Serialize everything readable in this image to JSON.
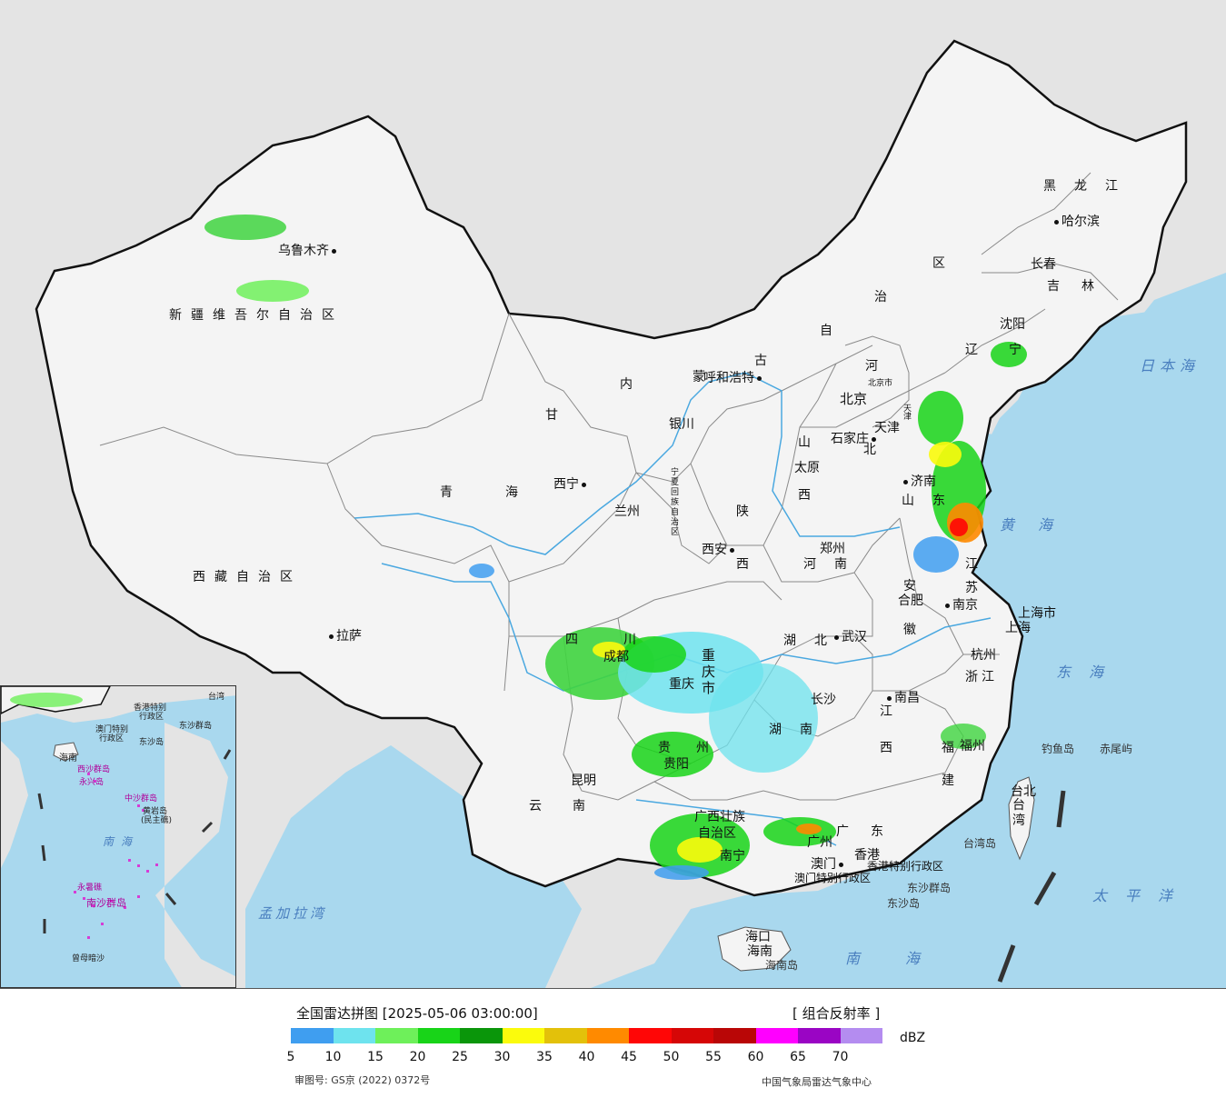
{
  "colors": {
    "sea": "#a9d8ee",
    "foreign_land": "#e4e4e4",
    "china_land": "#f4f4f4",
    "national_border": "#111111",
    "river": "#4aa8e0"
  },
  "map": {
    "provinces": {
      "xinjiang": "新疆维吾尔自治区",
      "xizang": "西藏自治区",
      "qinghai_1": "青",
      "qinghai_2": "海",
      "gansu": "甘",
      "neimenggu_1": "内",
      "neimenggu_2": "蒙",
      "neimenggu_3": "古",
      "neimenggu_4": "自",
      "neimenggu_5": "治",
      "neimenggu_6": "区",
      "ningxia": "宁夏回族自治区",
      "heilongjiang": "黑龙江",
      "jilin": "吉林",
      "liaoning_1": "辽",
      "liaoning_2": "宁",
      "hebei_1": "河",
      "hebei_2": "北",
      "shanxi_1": "山",
      "shanxi_2": "西",
      "shaanxi_1": "陕",
      "shaanxi_2": "西",
      "henan": "河南",
      "shandong": "山东",
      "jiangsu_1": "江",
      "jiangsu_2": "苏",
      "anhui_1": "安",
      "anhui_2": "徽",
      "hubei": "湖北",
      "hunan": "湖南",
      "sichuan": "四川",
      "chongqing": "重庆市",
      "guizhou": "贵州",
      "yunnan": "云南",
      "guangxi_1": "广西壮族",
      "guangxi_2": "自治区",
      "guangdong": "广东",
      "jiangxi_1": "江",
      "jiangxi_2": "西",
      "zhejiang": "浙江",
      "fujian_1": "福",
      "fujian_2": "建",
      "taiwan": "台湾",
      "hainan": "海南",
      "shanghai": "上海市",
      "beijing": "北京市",
      "tianjin": "天津",
      "hongkong": "香港特别行政区",
      "macau": "澳门特别行政区"
    },
    "cities": {
      "urumqi": "乌鲁木齐",
      "lhasa": "拉萨",
      "xining": "西宁",
      "lanzhou": "兰州",
      "yinchuan": "银川",
      "hohhot": "呼和浩特",
      "beijing": "北京",
      "tianjin": "天津",
      "shijiazhuang": "石家庄",
      "taiyuan": "太原",
      "jinan": "济南",
      "zhengzhou": "郑州",
      "xian": "西安",
      "hefei": "合肥",
      "nanjing": "南京",
      "shanghai": "上海",
      "hangzhou": "杭州",
      "wuhan": "武汉",
      "changsha": "长沙",
      "nanchang": "南昌",
      "fuzhou": "福州",
      "taibei": "台北",
      "chengdu": "成都",
      "chongqing": "重庆",
      "guiyang": "贵阳",
      "kunming": "昆明",
      "nanning": "南宁",
      "guangzhou": "广州",
      "hongkong": "香港",
      "macau": "澳门",
      "haikou": "海口",
      "harbin": "哈尔滨",
      "changchun": "长春",
      "shenyang": "沈阳"
    },
    "islands": {
      "diaoyu": "钓鱼岛",
      "chiwei": "赤尾屿",
      "dongsha_group": "东沙群岛",
      "dongsha": "东沙岛",
      "taiwan_island": "台湾岛",
      "hainan_island": "海南岛"
    },
    "seas": {
      "japan_sea": "日本海",
      "yellow_sea": "黄海",
      "east_sea": "东海",
      "pacific": "太平洋",
      "south_sea": "南海",
      "bengal": "孟加拉湾"
    }
  },
  "inset": {
    "labels": {
      "taiwan": "台湾",
      "hongkong": "香港特别",
      "hk2": "行政区",
      "macau": "澳门特别",
      "macau2": "行政区",
      "dongsha": "东沙群岛",
      "dongsha2": "东沙岛",
      "hainan": "海南",
      "xisha": "西沙群岛",
      "yongxing": "永兴岛",
      "zhongsha": "中沙群岛",
      "huangyan": "黄岩岛",
      "huangyan2": "(民主礁)",
      "yongshu": "永暑礁",
      "nansha": "南沙群岛",
      "zengmu": "曾母暗沙",
      "south_sea": "南海"
    }
  },
  "legend": {
    "title": "全国雷达拼图 [2025-05-06 03:00:00]",
    "product": "[ 组合反射率 ]",
    "unit": "dBZ",
    "approval": "审图号: GS京 (2022) 0372号",
    "source": "中国气象局雷达气象中心",
    "levels": [
      "5",
      "10",
      "15",
      "20",
      "25",
      "30",
      "35",
      "40",
      "45",
      "50",
      "55",
      "60",
      "65",
      "70"
    ],
    "colors": [
      "#3f9ef0",
      "#6ee3ee",
      "#6ef05a",
      "#18d418",
      "#0a960a",
      "#fbfb0c",
      "#e3c10a",
      "#ff8a00",
      "#ff0606",
      "#d60606",
      "#b90606",
      "#ff00ff",
      "#9a05c4",
      "#b48cf0"
    ]
  }
}
